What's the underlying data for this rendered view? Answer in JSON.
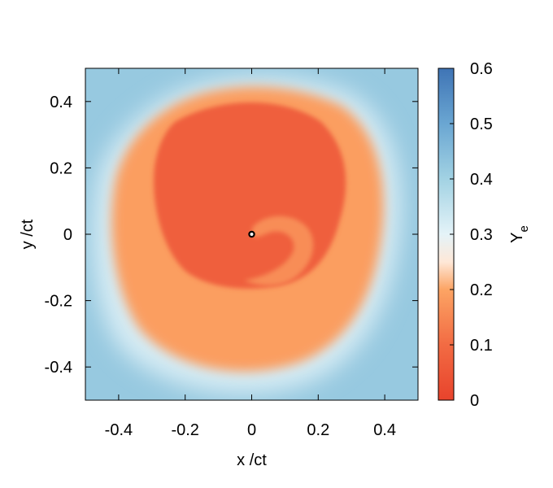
{
  "chart_data": {
    "type": "heatmap",
    "title": "",
    "xlabel": "x /ct",
    "ylabel": "y /ct",
    "colorbar": {
      "label": "Y",
      "label_subscript": "e",
      "range": [
        0,
        0.6
      ],
      "ticks": [
        0,
        0.1,
        0.2,
        0.3,
        0.4,
        0.5,
        0.6
      ],
      "tick_labels": [
        "0",
        "0.1",
        "0.2",
        "0.3",
        "0.4",
        "0.5",
        "0.6"
      ],
      "colormap_stops": [
        {
          "value": 0.0,
          "color": "#e8432c"
        },
        {
          "value": 0.1,
          "color": "#f26b43"
        },
        {
          "value": 0.2,
          "color": "#fca464"
        },
        {
          "value": 0.25,
          "color": "#fee8d8"
        },
        {
          "value": 0.3,
          "color": "#e4f3f8"
        },
        {
          "value": 0.4,
          "color": "#a2d2e3"
        },
        {
          "value": 0.5,
          "color": "#6aa6d2"
        },
        {
          "value": 0.6,
          "color": "#3f74b5"
        }
      ]
    },
    "xlim": [
      -0.5,
      0.5
    ],
    "ylim": [
      -0.5,
      0.5
    ],
    "x_ticks": [
      -0.4,
      -0.2,
      0,
      0.2,
      0.4
    ],
    "x_tick_labels": [
      "-0.4",
      "-0.2",
      "0",
      "0.2",
      "0.4"
    ],
    "y_ticks": [
      -0.4,
      -0.2,
      0,
      0.2,
      0.4
    ],
    "y_tick_labels": [
      "-0.4",
      "-0.2",
      "0",
      "0.2",
      "0.4"
    ],
    "field_regions": [
      {
        "name": "background",
        "ye": 0.42
      },
      {
        "name": "outer-shell",
        "ye": 0.32
      },
      {
        "name": "orange-ejecta",
        "ye": 0.19
      },
      {
        "name": "inner-core",
        "ye": 0.07
      },
      {
        "name": "spiral-arm",
        "ye": 0.16
      }
    ],
    "center_marker": {
      "x": 0,
      "y": 0
    }
  }
}
